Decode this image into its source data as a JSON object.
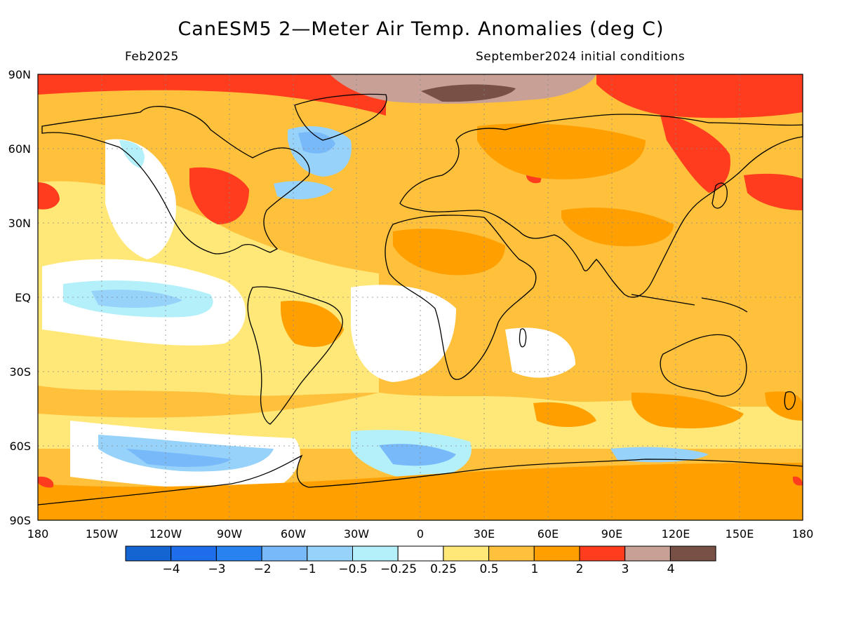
{
  "header": {
    "title": "CanESM5 2—Meter Air Temp. Anomalies (deg C)",
    "valid_month": "Feb2025",
    "initial_conditions": "September2024 initial conditions"
  },
  "axes": {
    "lat_labels": [
      "90N",
      "60N",
      "30N",
      "EQ",
      "30S",
      "60S",
      "90S"
    ],
    "lon_labels": [
      "180",
      "150W",
      "120W",
      "90W",
      "60W",
      "30W",
      "0",
      "30E",
      "60E",
      "90E",
      "120E",
      "150E",
      "180"
    ]
  },
  "colorbar": {
    "colors": [
      "#1464d2",
      "#1e6eeb",
      "#2882f0",
      "#78b9fa",
      "#96d2fa",
      "#b4f0fa",
      "#ffffff",
      "#ffe878",
      "#ffc03c",
      "#ffa000",
      "#ff3c1e",
      "#c8a096",
      "#785046"
    ],
    "tick_labels": [
      "−4",
      "−3",
      "−2",
      "−1",
      "−0.5",
      "−0.25",
      "0.25",
      "0.5",
      "1",
      "2",
      "3",
      "4"
    ]
  }
}
